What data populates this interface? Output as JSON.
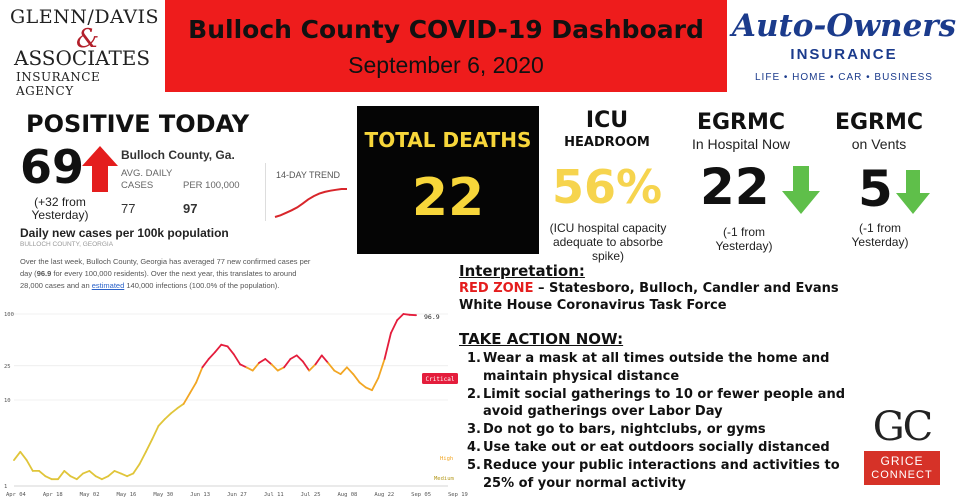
{
  "header": {
    "left_logo": {
      "line1": "GLENN/DAVIS",
      "amp": "&",
      "line2": "ASSOCIATES",
      "line3": "INSURANCE AGENCY"
    },
    "title": "Bulloch County COVID-19 Dashboard",
    "date": "September 6, 2020",
    "right_logo": {
      "name": "Auto-Owners",
      "insurance": "INSURANCE",
      "tagline": "LIFE • HOME • CAR • BUSINESS"
    }
  },
  "positive_today": {
    "heading": "POSITIVE TODAY",
    "value": "69",
    "change": "(+32 from Yesterday)",
    "arrow_color": "#e41d1d",
    "arrow_icon": "arrow-up-icon"
  },
  "stats_widget": {
    "county": "Bulloch County, Ga.",
    "avg_label": "AVG. DAILY CASES",
    "per_label": "PER 100,000",
    "avg_value": "77",
    "per_value": "97",
    "trend_label": "14-DAY TREND",
    "trend_values": [
      30,
      34,
      40,
      46,
      53,
      62,
      72,
      80,
      86,
      90,
      93,
      95,
      97,
      97
    ]
  },
  "cases_section": {
    "heading": "Daily new cases per 100k population",
    "geo": "BULLOCH COUNTY, GEORGIA",
    "desc_part1": "Over the last week, Bulloch County, Georgia has averaged 77 new confirmed cases per day (",
    "desc_bold": "96.9",
    "desc_part2": " for every 100,000 residents). Over the next year, this translates to around 28,000 cases and an ",
    "desc_link": "estimated",
    "desc_part3": " 140,000 infections (100.0% of the population)."
  },
  "chart_data": {
    "type": "line",
    "title": "",
    "ylabel": "",
    "xlabel": "",
    "x_tick_labels": [
      "Apr 04",
      "Apr 18",
      "May 02",
      "May 16",
      "May 30",
      "Jun 13",
      "Jun 27",
      "Jul 11",
      "Jul 25",
      "Aug 08",
      "Aug 22",
      "Sep 05",
      "Sep 19"
    ],
    "y_tick_labels": [
      "100",
      "25",
      "10",
      "1"
    ],
    "y_scale": "log",
    "ylim": [
      1,
      100
    ],
    "end_label": "96.9",
    "zones": [
      {
        "name": "Critical",
        "color": "#e41d3c"
      },
      {
        "name": "High",
        "color": "#f2a623"
      },
      {
        "name": "Medium",
        "color": "#e0c53a"
      }
    ],
    "series": [
      {
        "values": [
          2,
          2.5,
          2,
          1.5,
          1.5,
          1.3,
          1.2,
          1.2,
          1.5,
          1.3,
          1.2,
          1.4,
          1.5,
          1.3,
          1.2,
          1.3,
          1.5,
          1.4,
          1.3,
          1.4,
          1.8,
          2.5,
          3.5,
          5,
          6,
          7,
          8,
          9,
          12,
          16,
          24,
          30,
          36,
          44,
          42,
          34,
          26,
          24,
          22,
          27,
          30,
          26,
          22,
          24,
          30,
          33,
          28,
          22,
          26,
          33,
          27,
          22,
          20,
          24,
          20,
          16,
          14,
          13,
          18,
          30,
          60,
          85,
          100,
          98,
          96.9
        ]
      }
    ]
  },
  "deaths": {
    "label": "TOTAL DEATHS",
    "value": "22",
    "color": "#f7d63a"
  },
  "icu": {
    "title": "ICU",
    "subtitle": "HEADROOM",
    "value": "56%",
    "note": "(ICU hospital capacity adequate to absorbe spike)",
    "color": "#f6d44e"
  },
  "egrmc_hospital": {
    "title": "EGRMC",
    "subtitle": "In Hospital Now",
    "value": "22",
    "note": "(-1 from Yesterday)",
    "arrow_color": "#5fbf4a",
    "arrow_icon": "arrow-down-icon"
  },
  "egrmc_vents": {
    "title": "EGRMC",
    "subtitle": "on Vents",
    "value": "5",
    "note": "(-1 from Yesterday)",
    "arrow_color": "#5fbf4a",
    "arrow_icon": "arrow-down-icon"
  },
  "interpretation": {
    "heading": "Interpretation:",
    "zone": "RED ZONE",
    "zone_rest": " – Statesboro, Bulloch, Candler and Evans",
    "line2": "White House Coronavirus Task Force"
  },
  "actions": {
    "heading": "TAKE ACTION NOW:",
    "items": [
      {
        "num": "1.",
        "text": "Wear a mask at all times outside the home and maintain physical distance"
      },
      {
        "num": "2.",
        "text": "Limit social gatherings to 10 or fewer people and avoid gatherings over Labor Day"
      },
      {
        "num": "3.",
        "text": "Do not go to bars, nightclubs, or gyms"
      },
      {
        "num": "4.",
        "text": "Use take out or eat outdoors socially distanced"
      },
      {
        "num": "5.",
        "text": "Reduce your public interactions and activities to 25% of your normal activity"
      }
    ]
  },
  "gc_logo": {
    "letters": "GC",
    "grice": "GRICE",
    "connect": "CONNECT"
  }
}
